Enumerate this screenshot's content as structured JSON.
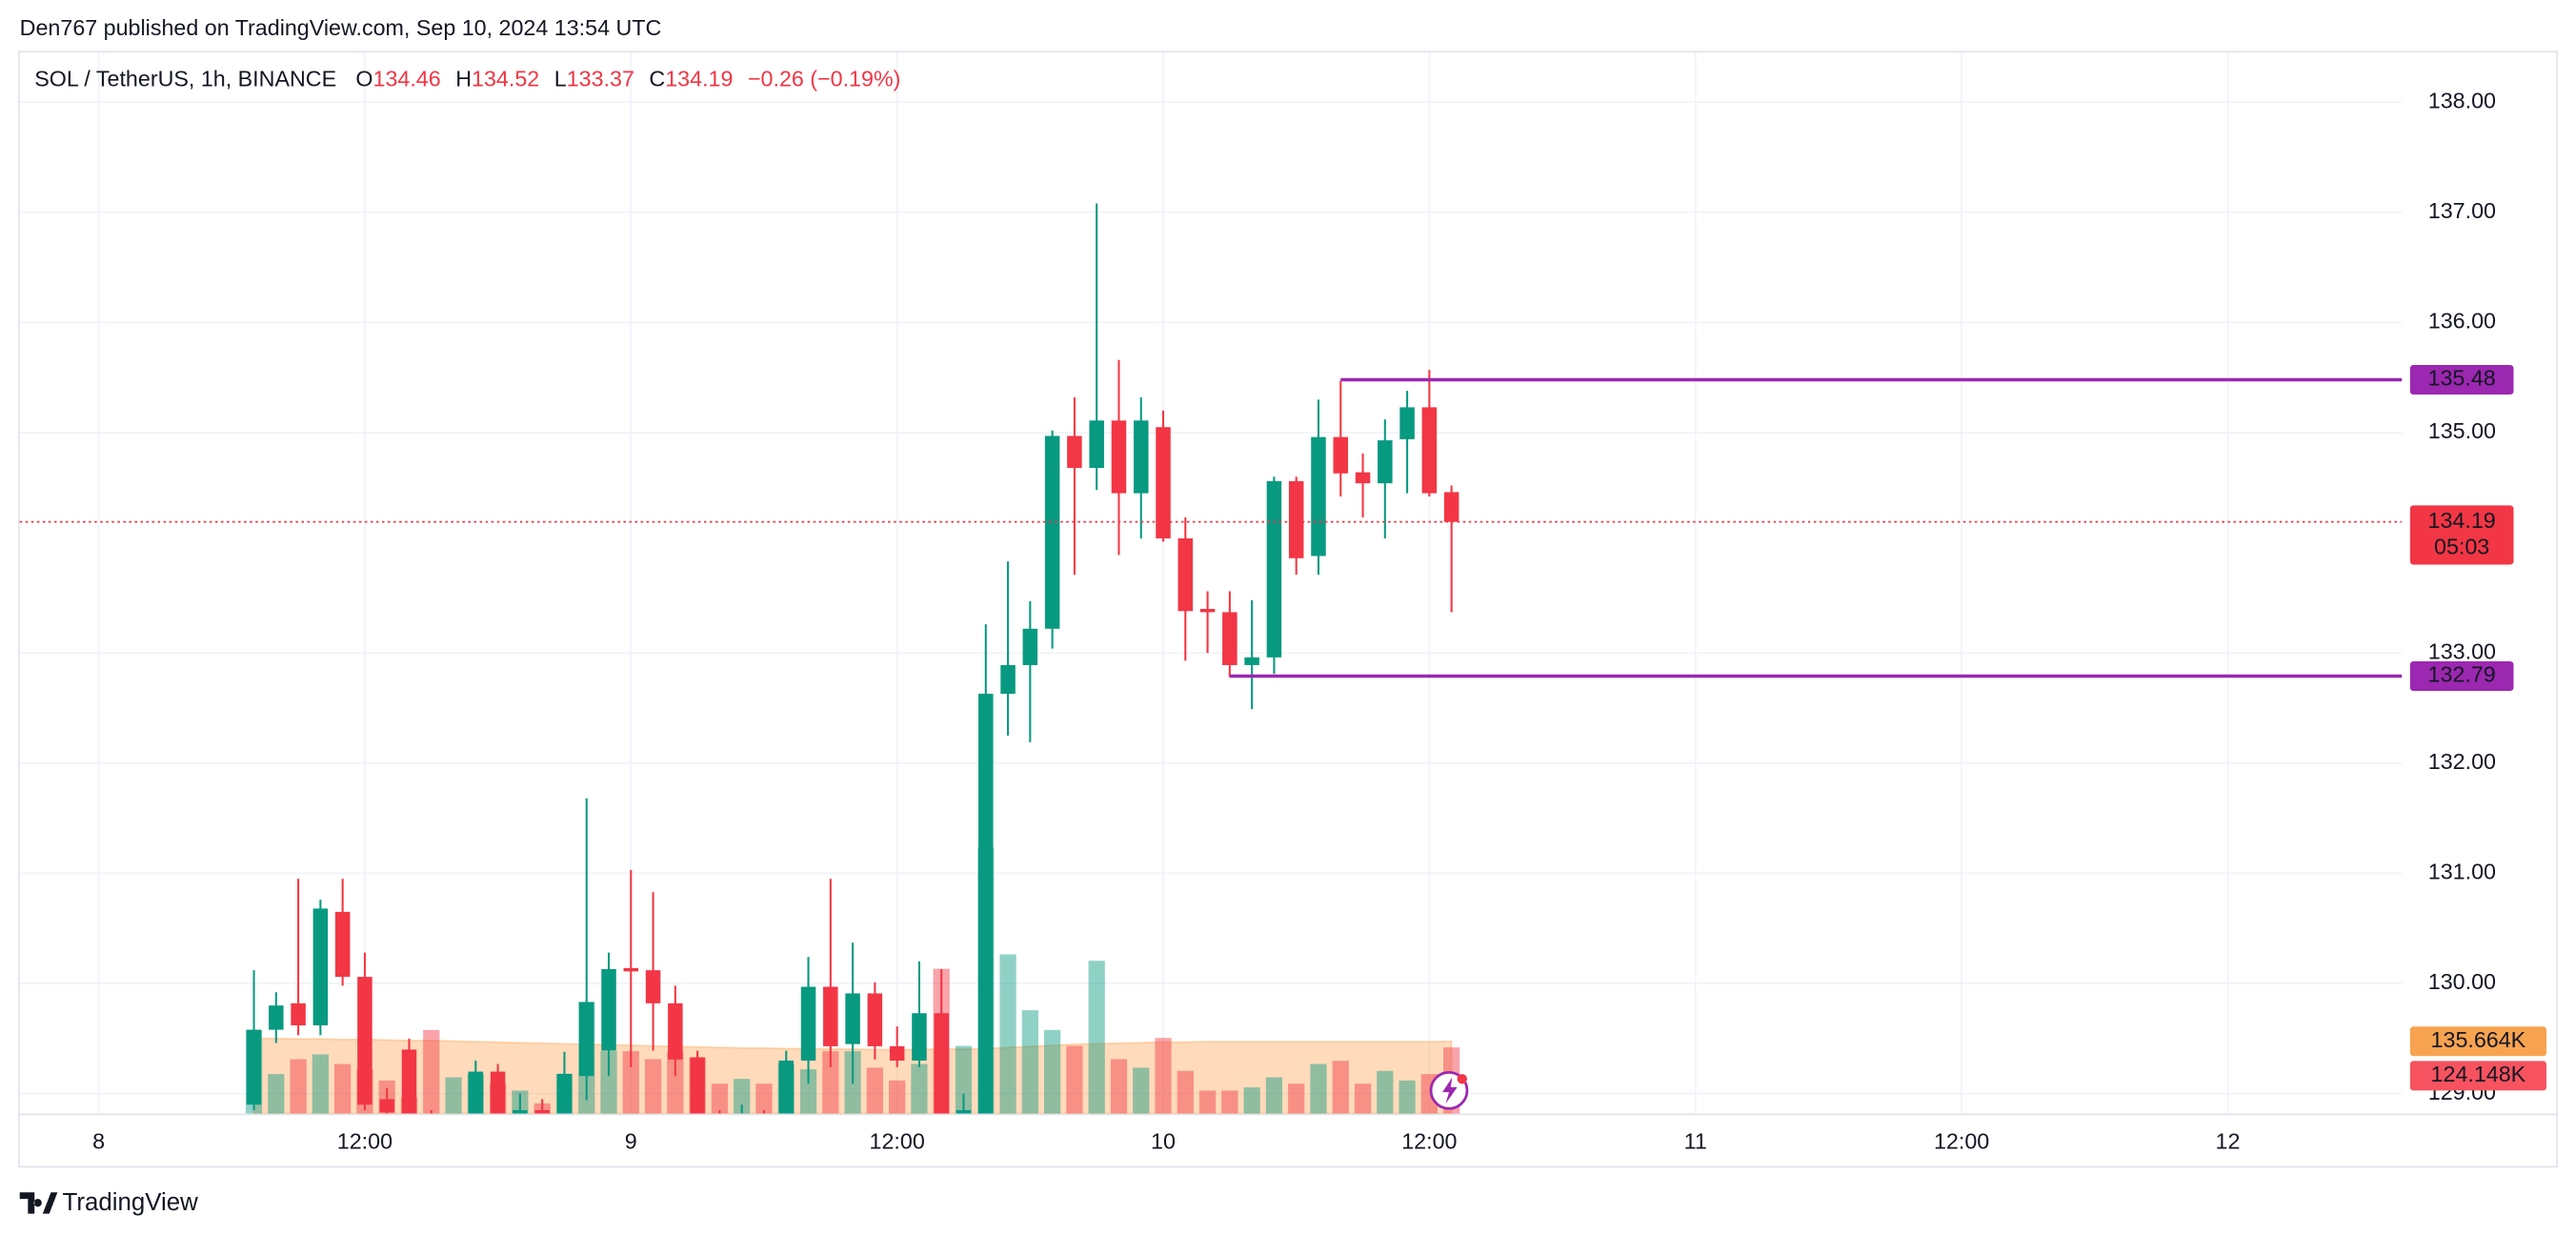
{
  "header": {
    "published": "Den767 published on TradingView.com, Sep 10, 2024 13:54 UTC"
  },
  "chart_data": {
    "type": "candlestick",
    "title": "SOL / TetherUS, 1h, BINANCE",
    "legend": [
      {
        "label": "O",
        "value": 134.46
      },
      {
        "label": "H",
        "value": 134.52
      },
      {
        "label": "L",
        "value": 133.37
      },
      {
        "label": "C",
        "value": 134.19
      }
    ],
    "change": "−0.26 (−0.19%)",
    "up_color": "#089981",
    "down_color": "#f23645",
    "x": [
      7,
      8,
      9,
      10,
      11,
      12,
      13,
      14,
      15,
      16,
      17,
      18,
      19,
      20,
      21,
      22,
      23,
      24,
      25,
      26,
      27,
      28,
      29,
      30,
      31,
      32,
      33,
      34,
      35,
      36,
      37,
      38,
      39,
      40,
      41,
      42,
      43,
      44,
      45,
      46,
      47,
      48,
      49,
      50,
      51,
      52,
      53,
      54,
      55,
      56,
      57,
      58,
      59,
      60,
      61
    ],
    "open": [
      128.9,
      129.58,
      129.82,
      129.62,
      130.65,
      130.06,
      128.95,
      129.4,
      128.8,
      128.7,
      128.8,
      129.2,
      128.8,
      128.85,
      128.8,
      129.16,
      129.39,
      130.14,
      130.12,
      129.82,
      129.33,
      128.8,
      128.75,
      128.8,
      128.8,
      129.3,
      129.97,
      129.45,
      129.91,
      129.43,
      129.3,
      129.73,
      128.8,
      128.8,
      132.63,
      132.89,
      133.22,
      134.97,
      134.68,
      135.11,
      134.45,
      135.05,
      134.04,
      133.4,
      133.37,
      132.89,
      132.96,
      134.56,
      133.88,
      134.96,
      134.64,
      134.54,
      134.94,
      135.23,
      134.46
    ],
    "high": [
      130.12,
      129.92,
      130.95,
      130.76,
      130.95,
      130.28,
      129.05,
      129.5,
      128.85,
      128.8,
      129.3,
      129.27,
      129.0,
      128.95,
      129.38,
      131.68,
      130.28,
      131.03,
      130.83,
      129.98,
      129.39,
      128.85,
      128.9,
      128.85,
      129.39,
      130.24,
      130.95,
      130.37,
      130.01,
      129.61,
      130.2,
      130.13,
      129.0,
      133.26,
      133.83,
      133.47,
      135.02,
      135.32,
      137.08,
      135.66,
      135.32,
      135.2,
      134.23,
      133.56,
      133.56,
      133.48,
      134.6,
      134.6,
      135.3,
      135.47,
      134.81,
      135.12,
      135.38,
      135.57,
      134.52
    ],
    "low": [
      128.85,
      129.46,
      129.53,
      129.53,
      129.98,
      128.85,
      128.7,
      128.7,
      128.6,
      128.6,
      128.7,
      128.7,
      128.7,
      128.7,
      128.7,
      128.94,
      129.16,
      129.24,
      129.39,
      129.16,
      128.7,
      128.65,
      128.7,
      128.7,
      128.7,
      129.09,
      129.24,
      129.09,
      129.31,
      129.24,
      129.24,
      128.7,
      128.7,
      128.7,
      132.25,
      132.19,
      133.04,
      133.71,
      134.48,
      133.89,
      134.04,
      134.01,
      132.93,
      133.0,
      132.78,
      132.49,
      132.81,
      133.71,
      133.71,
      134.42,
      134.23,
      134.04,
      134.45,
      134.42,
      133.37
    ],
    "close": [
      129.58,
      129.8,
      129.62,
      130.68,
      130.06,
      128.9,
      128.83,
      128.8,
      128.7,
      128.75,
      129.2,
      128.8,
      128.85,
      128.8,
      129.18,
      129.83,
      130.13,
      130.11,
      129.82,
      129.31,
      128.8,
      128.75,
      128.8,
      128.78,
      129.3,
      129.97,
      129.43,
      129.91,
      129.43,
      129.3,
      129.73,
      128.8,
      128.85,
      132.63,
      132.89,
      133.22,
      134.97,
      134.68,
      135.11,
      134.45,
      135.11,
      134.04,
      133.38,
      133.37,
      132.89,
      132.96,
      134.56,
      133.86,
      134.96,
      134.63,
      134.54,
      134.93,
      135.23,
      134.45,
      134.19
    ],
    "volume": [
      157,
      74,
      102,
      111,
      93,
      83,
      62,
      31,
      157,
      68,
      74,
      56,
      43,
      19,
      74,
      210,
      117,
      117,
      102,
      117,
      105,
      56,
      65,
      56,
      93,
      83,
      117,
      117,
      86,
      62,
      93,
      272,
      127,
      500,
      299,
      194,
      157,
      127,
      287,
      102,
      86,
      142,
      80,
      43,
      43,
      49,
      68,
      56,
      93,
      99,
      56,
      80,
      62,
      74,
      124.148
    ],
    "volume_ma": [
      141,
      141,
      140,
      140,
      139,
      139,
      138,
      137,
      137,
      136,
      135,
      134,
      133,
      132,
      131,
      130,
      129,
      128,
      127,
      126,
      125,
      124,
      123,
      123,
      122,
      122,
      121,
      121,
      120,
      120,
      120,
      121,
      121,
      122,
      124,
      126,
      128,
      130,
      131,
      132,
      133,
      134,
      134,
      135,
      135,
      135,
      135,
      135,
      135,
      135,
      135,
      135,
      135,
      135,
      135.664
    ],
    "volume_labels": [
      {
        "value": 135.664,
        "label": "135.664K",
        "color": "#f7a350"
      },
      {
        "value": 124.148,
        "label": "124.148K",
        "color": "#f7525f"
      }
    ],
    "ylim": [
      128.82,
      138.45
    ],
    "yticks": [
      {
        "value": 129,
        "label": "129.00"
      },
      {
        "value": 130,
        "label": "130.00"
      },
      {
        "value": 131,
        "label": "131.00"
      },
      {
        "value": 132,
        "label": "132.00"
      },
      {
        "value": 133,
        "label": "133.00"
      },
      {
        "value": 135,
        "label": "135.00"
      },
      {
        "value": 136,
        "label": "136.00"
      },
      {
        "value": 137,
        "label": "137.00"
      },
      {
        "value": 138,
        "label": "138.00"
      }
    ],
    "xlim": [
      -3.56,
      103.85
    ],
    "xticks": [
      {
        "value": 0,
        "label": "8"
      },
      {
        "value": 12,
        "label": "12:00"
      },
      {
        "value": 24,
        "label": "9"
      },
      {
        "value": 36,
        "label": "12:00"
      },
      {
        "value": 48,
        "label": "10"
      },
      {
        "value": 60,
        "label": "12:00"
      },
      {
        "value": 72,
        "label": "11"
      },
      {
        "value": 84,
        "label": "12:00"
      },
      {
        "value": 96,
        "label": "12"
      }
    ],
    "grid": true,
    "levels": [
      {
        "value": 135.48,
        "x": 56,
        "color": "#9c27b0"
      },
      {
        "value": 132.79,
        "x": 51,
        "color": "#9c27b0"
      }
    ],
    "last_price": {
      "value": 134.19,
      "countdown": "05:03"
    }
  },
  "footer": {
    "brand": "TradingView"
  }
}
